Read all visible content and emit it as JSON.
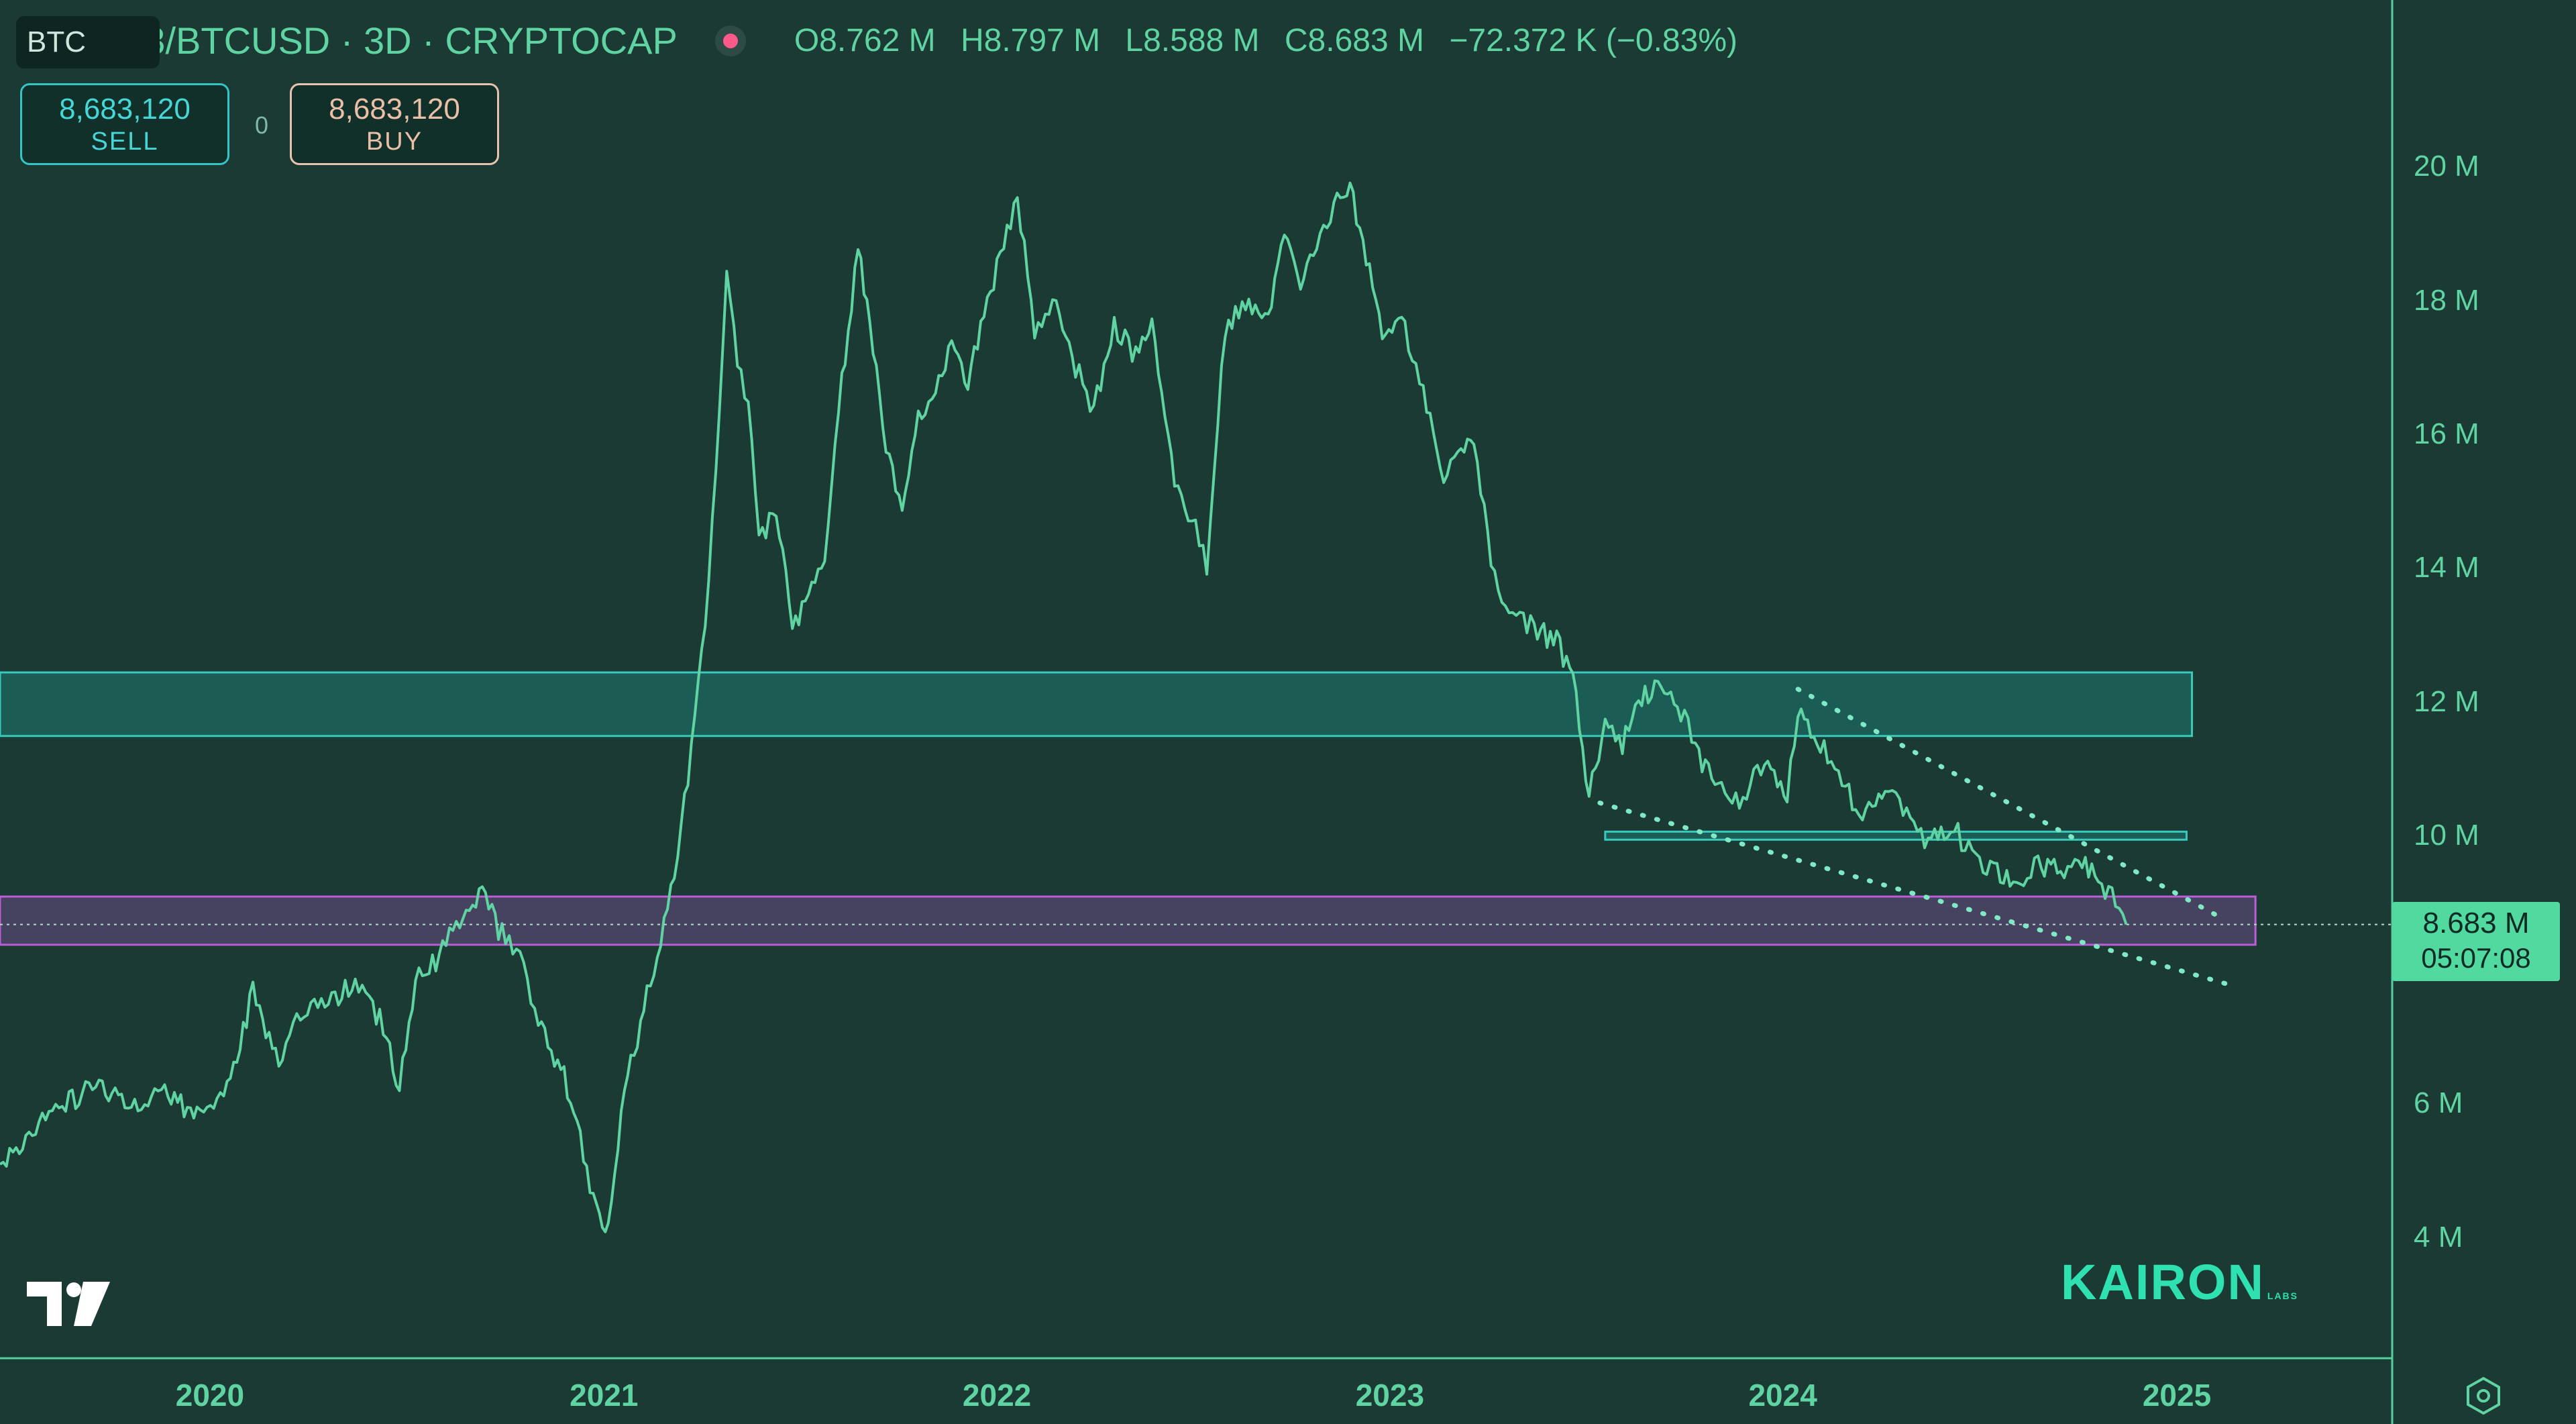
{
  "header": {
    "symbol": "TOTAL3/BTCUSD · 3D · CRYPTOCAP",
    "open": "O8.762 M",
    "high": "H8.797 M",
    "low": "L8.588 M",
    "close": "C8.683 M",
    "change": "−72.372 K (−0.83%)"
  },
  "trade": {
    "sell_value": "8,683,120",
    "sell_label": "SELL",
    "spread": "0",
    "buy_value": "8,683,120",
    "buy_label": "BUY"
  },
  "currency": "BTC",
  "last_price": {
    "value": "8.683 M",
    "countdown": "05:07:08"
  },
  "brand": {
    "name": "KAIRON",
    "suffix": "LABS"
  },
  "colors": {
    "background": "#1a3a33",
    "line": "#5fd4a2",
    "resistance_zone": "#1c6a62",
    "support_zone": "#bb5fd6",
    "price_label": "#52d9a0",
    "live_dot": "#ff5a8a"
  },
  "icons": {
    "status": "live-dot-icon",
    "logo": "tradingview-logo-icon",
    "settings": "settings-hexagon-icon"
  },
  "chart_data": {
    "type": "line",
    "y_unit": "M",
    "ylim": [
      2.2,
      22.5
    ],
    "xlim": [
      "2019-06-20",
      "2025-07-20"
    ],
    "y_ticks": [
      {
        "value": 4,
        "label": "4 M"
      },
      {
        "value": 6,
        "label": "6 M"
      },
      {
        "value": 10,
        "label": "10 M"
      },
      {
        "value": 12,
        "label": "12 M"
      },
      {
        "value": 14,
        "label": "14 M"
      },
      {
        "value": 16,
        "label": "16 M"
      },
      {
        "value": 18,
        "label": "18 M"
      },
      {
        "value": 20,
        "label": "20 M"
      }
    ],
    "x_ticks": [
      {
        "date": "2020-01-01",
        "label": "2020"
      },
      {
        "date": "2021-01-01",
        "label": "2021"
      },
      {
        "date": "2022-01-01",
        "label": "2022"
      },
      {
        "date": "2023-01-01",
        "label": "2023"
      },
      {
        "date": "2024-01-01",
        "label": "2024"
      },
      {
        "date": "2025-01-01",
        "label": "2025"
      }
    ],
    "series": [
      {
        "points": [
          [
            "2019-06-20",
            5.1
          ],
          [
            "2019-07-20",
            5.6
          ],
          [
            "2019-08-20",
            6.0
          ],
          [
            "2019-09-20",
            6.3
          ],
          [
            "2019-10-20",
            6.0
          ],
          [
            "2019-11-20",
            6.2
          ],
          [
            "2019-12-20",
            5.8
          ],
          [
            "2020-01-20",
            6.3
          ],
          [
            "2020-02-10",
            7.7
          ],
          [
            "2020-03-05",
            6.6
          ],
          [
            "2020-03-25",
            7.3
          ],
          [
            "2020-04-20",
            7.5
          ],
          [
            "2020-05-15",
            7.8
          ],
          [
            "2020-06-10",
            7.2
          ],
          [
            "2020-06-25",
            6.2
          ],
          [
            "2020-07-10",
            7.9
          ],
          [
            "2020-08-01",
            8.2
          ],
          [
            "2020-08-20",
            8.8
          ],
          [
            "2020-09-10",
            9.2
          ],
          [
            "2020-09-25",
            8.6
          ],
          [
            "2020-10-15",
            8.3
          ],
          [
            "2020-11-01",
            7.2
          ],
          [
            "2020-11-25",
            6.4
          ],
          [
            "2020-12-10",
            5.5
          ],
          [
            "2020-12-25",
            4.4
          ],
          [
            "2021-01-05",
            4.2
          ],
          [
            "2021-01-20",
            6.2
          ],
          [
            "2021-02-10",
            7.6
          ],
          [
            "2021-03-01",
            8.9
          ],
          [
            "2021-03-20",
            10.8
          ],
          [
            "2021-04-05",
            13.2
          ],
          [
            "2021-04-15",
            15.5
          ],
          [
            "2021-04-25",
            18.5
          ],
          [
            "2021-05-05",
            17.0
          ],
          [
            "2021-05-15",
            16.5
          ],
          [
            "2021-05-25",
            14.5
          ],
          [
            "2021-06-10",
            14.8
          ],
          [
            "2021-06-25",
            13.2
          ],
          [
            "2021-07-10",
            13.5
          ],
          [
            "2021-07-25",
            14.2
          ],
          [
            "2021-08-10",
            16.8
          ],
          [
            "2021-08-25",
            18.8
          ],
          [
            "2021-09-05",
            17.6
          ],
          [
            "2021-09-20",
            15.8
          ],
          [
            "2021-10-05",
            14.8
          ],
          [
            "2021-10-20",
            16.2
          ],
          [
            "2021-11-05",
            16.6
          ],
          [
            "2021-11-20",
            17.4
          ],
          [
            "2021-12-05",
            16.8
          ],
          [
            "2022-01-01",
            18.5
          ],
          [
            "2022-01-20",
            19.6
          ],
          [
            "2022-02-05",
            17.6
          ],
          [
            "2022-02-25",
            18.0
          ],
          [
            "2022-03-15",
            17.0
          ],
          [
            "2022-04-01",
            16.4
          ],
          [
            "2022-04-20",
            17.6
          ],
          [
            "2022-05-10",
            17.2
          ],
          [
            "2022-05-25",
            17.8
          ],
          [
            "2022-06-15",
            15.2
          ],
          [
            "2022-07-01",
            14.8
          ],
          [
            "2022-07-15",
            14.0
          ],
          [
            "2022-08-01",
            17.6
          ],
          [
            "2022-08-20",
            18.0
          ],
          [
            "2022-09-10",
            17.8
          ],
          [
            "2022-09-25",
            19.0
          ],
          [
            "2022-10-10",
            18.2
          ],
          [
            "2022-10-25",
            18.8
          ],
          [
            "2022-11-10",
            19.4
          ],
          [
            "2022-11-25",
            19.8
          ],
          [
            "2022-12-10",
            18.6
          ],
          [
            "2022-12-25",
            17.6
          ],
          [
            "2023-01-15",
            17.6
          ],
          [
            "2023-02-01",
            16.6
          ],
          [
            "2023-02-20",
            15.4
          ],
          [
            "2023-03-05",
            15.8
          ],
          [
            "2023-03-20",
            16.0
          ],
          [
            "2023-04-05",
            14.0
          ],
          [
            "2023-04-25",
            13.3
          ],
          [
            "2023-05-15",
            13.1
          ],
          [
            "2023-06-05",
            12.9
          ],
          [
            "2023-06-20",
            12.4
          ],
          [
            "2023-07-05",
            10.6
          ],
          [
            "2023-07-20",
            11.6
          ],
          [
            "2023-08-05",
            11.4
          ],
          [
            "2023-08-20",
            12.0
          ],
          [
            "2023-09-10",
            12.3
          ],
          [
            "2023-09-25",
            12.0
          ],
          [
            "2023-10-15",
            11.2
          ],
          [
            "2023-11-05",
            10.7
          ],
          [
            "2023-11-25",
            10.5
          ],
          [
            "2023-12-15",
            11.2
          ],
          [
            "2024-01-05",
            10.6
          ],
          [
            "2024-01-15",
            11.9
          ],
          [
            "2024-02-05",
            11.4
          ],
          [
            "2024-02-25",
            10.9
          ],
          [
            "2024-03-15",
            10.2
          ],
          [
            "2024-04-05",
            10.8
          ],
          [
            "2024-04-25",
            10.3
          ],
          [
            "2024-05-15",
            9.9
          ],
          [
            "2024-06-05",
            10.2
          ],
          [
            "2024-06-25",
            9.7
          ],
          [
            "2024-07-15",
            9.5
          ],
          [
            "2024-08-05",
            9.3
          ],
          [
            "2024-08-25",
            9.6
          ],
          [
            "2024-09-15",
            9.5
          ],
          [
            "2024-10-05",
            9.6
          ],
          [
            "2024-10-20",
            9.4
          ],
          [
            "2024-11-05",
            9.0
          ],
          [
            "2024-11-15",
            8.683
          ]
        ]
      }
    ],
    "zones": [
      {
        "y": [
          11.5,
          12.45
        ],
        "x": [
          "2019-06-20",
          "2025-01-15"
        ],
        "color": "#1c6a62"
      },
      {
        "y": [
          8.38,
          9.1
        ],
        "x": [
          "2019-06-20",
          "2025-03-15"
        ],
        "color": "#bb5fd6"
      },
      {
        "y": [
          9.95,
          10.07
        ],
        "x": [
          "2023-07-20",
          "2025-01-10"
        ],
        "color": "#1c6a62"
      }
    ],
    "trendlines": [
      {
        "from": [
          "2024-01-15",
          12.2
        ],
        "to": [
          "2025-02-15",
          8.75
        ]
      },
      {
        "from": [
          "2023-07-15",
          10.5
        ],
        "to": [
          "2025-02-15",
          7.8
        ]
      }
    ],
    "price_line": 8.683
  }
}
